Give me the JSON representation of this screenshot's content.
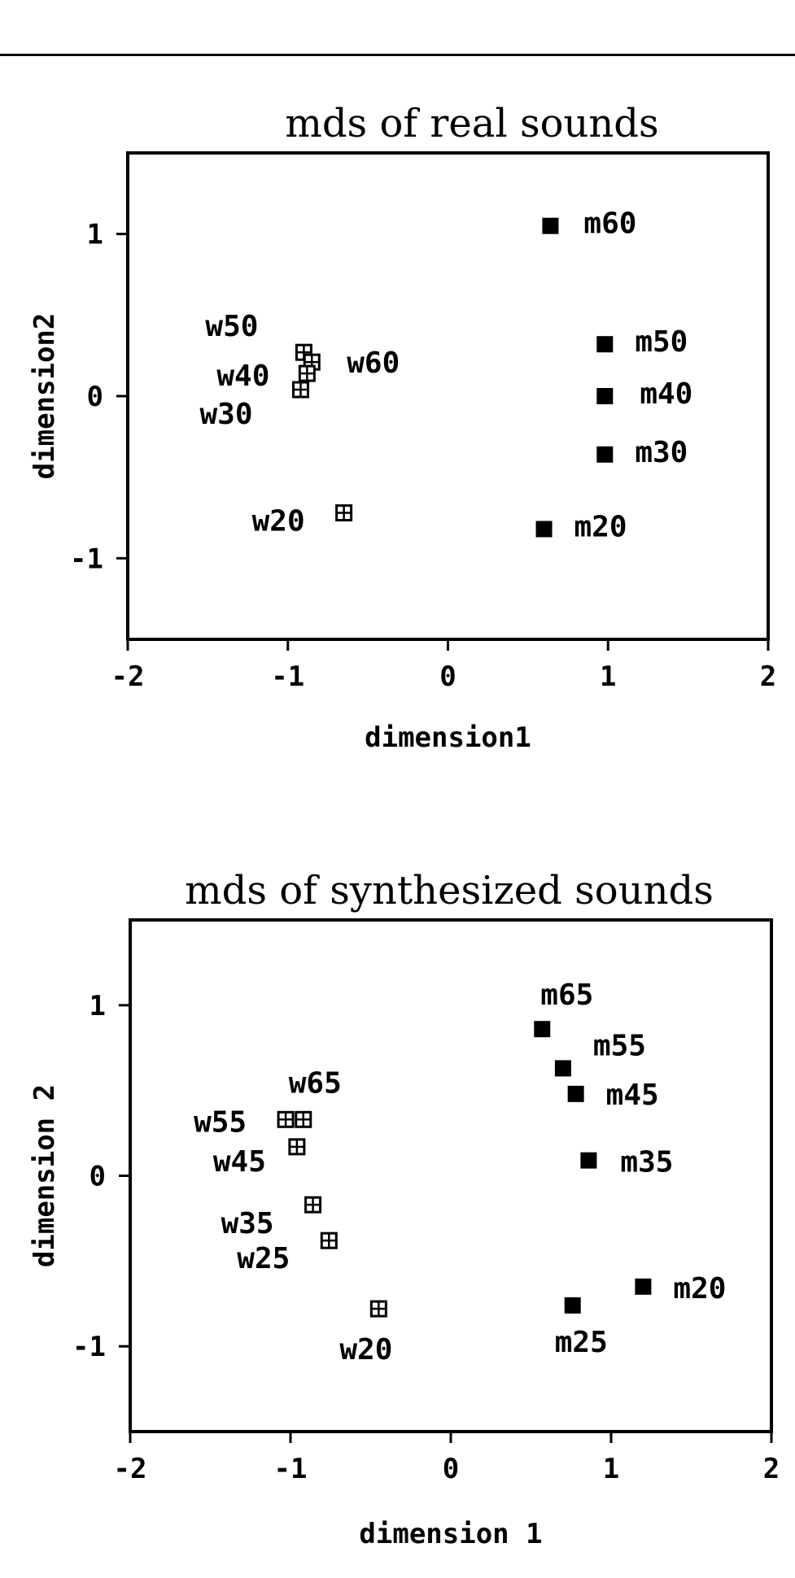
{
  "chart_data": [
    {
      "type": "scatter",
      "title": "mds of real sounds",
      "xlabel": "dimension1",
      "ylabel": "dimension2",
      "xlim": [
        -2,
        2
      ],
      "ylim": [
        -1.5,
        1.5
      ],
      "xticks": [
        "-2",
        "-1",
        "0",
        "1",
        "2"
      ],
      "yticks": [
        "1",
        "0",
        "-1"
      ],
      "series": [
        {
          "marker": "crossed-square",
          "points": [
            {
              "label": "w50",
              "x": -0.9,
              "y": 0.27
            },
            {
              "label": "w60",
              "x": -0.85,
              "y": 0.21
            },
            {
              "label": "w40",
              "x": -0.88,
              "y": 0.14
            },
            {
              "label": "w30",
              "x": -0.92,
              "y": 0.04
            },
            {
              "label": "w20",
              "x": -0.65,
              "y": -0.72
            }
          ]
        },
        {
          "marker": "filled-square",
          "points": [
            {
              "label": "m60",
              "x": 0.64,
              "y": 1.05
            },
            {
              "label": "m50",
              "x": 0.98,
              "y": 0.32
            },
            {
              "label": "m40",
              "x": 0.98,
              "y": 0.0
            },
            {
              "label": "m30",
              "x": 0.98,
              "y": -0.36
            },
            {
              "label": "m20",
              "x": 0.6,
              "y": -0.82
            }
          ]
        }
      ]
    },
    {
      "type": "scatter",
      "title": "mds of synthesized sounds",
      "xlabel": "dimension 1",
      "ylabel": "dimension 2",
      "xlim": [
        -2,
        2
      ],
      "ylim": [
        -1.5,
        1.5
      ],
      "xticks": [
        "-2",
        "-1",
        "0",
        "1",
        "2"
      ],
      "yticks": [
        "1",
        "0",
        "-1"
      ],
      "series": [
        {
          "marker": "crossed-square",
          "points": [
            {
              "label": "w65",
              "x": -0.92,
              "y": 0.33
            },
            {
              "label": "w55",
              "x": -1.03,
              "y": 0.33
            },
            {
              "label": "w45",
              "x": -0.96,
              "y": 0.17
            },
            {
              "label": "w35",
              "x": -0.86,
              "y": -0.17
            },
            {
              "label": "w25",
              "x": -0.76,
              "y": -0.38
            },
            {
              "label": "w20",
              "x": -0.45,
              "y": -0.78
            }
          ]
        },
        {
          "marker": "filled-square",
          "points": [
            {
              "label": "m65",
              "x": 0.57,
              "y": 0.86
            },
            {
              "label": "m55",
              "x": 0.7,
              "y": 0.63
            },
            {
              "label": "m45",
              "x": 0.78,
              "y": 0.48
            },
            {
              "label": "m35",
              "x": 0.86,
              "y": 0.09
            },
            {
              "label": "m20",
              "x": 1.2,
              "y": -0.65
            },
            {
              "label": "m25",
              "x": 0.76,
              "y": -0.76
            }
          ]
        }
      ]
    }
  ]
}
